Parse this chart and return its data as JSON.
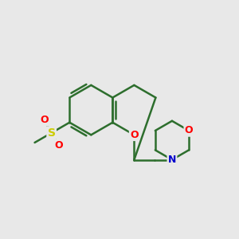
{
  "background_color": "#e8e8e8",
  "bond_color": "#2d6e2d",
  "bond_width": 1.8,
  "atom_colors": {
    "O": "#ff0000",
    "N": "#0000cc",
    "S": "#cccc00",
    "C": "#2d6e2d"
  },
  "font_size": 9,
  "fig_size": [
    3.0,
    3.0
  ],
  "dpi": 100
}
